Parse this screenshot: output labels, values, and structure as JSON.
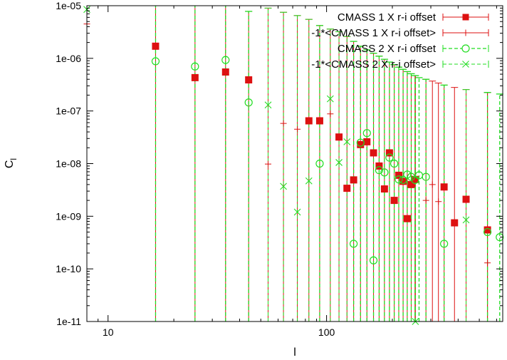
{
  "chart_data": {
    "type": "scatter",
    "title": "",
    "xlabel": "l",
    "ylabel": "C_l",
    "xscale": "log",
    "yscale": "log",
    "xlim": [
      8,
      640
    ],
    "ylim": [
      1e-11,
      1e-05
    ],
    "x_ticks": [
      {
        "value": 10,
        "label": "10"
      },
      {
        "value": 100,
        "label": "100"
      }
    ],
    "y_ticks": [
      {
        "value": 1e-11,
        "label": "1e-11"
      },
      {
        "value": 1e-10,
        "label": "1e-10"
      },
      {
        "value": 1e-09,
        "label": "1e-09"
      },
      {
        "value": 1e-08,
        "label": "1e-08"
      },
      {
        "value": 1e-07,
        "label": "1e-07"
      },
      {
        "value": 1e-06,
        "label": "1e-06"
      },
      {
        "value": 1e-05,
        "label": "1e-05"
      }
    ],
    "legend_position": "top-right",
    "colors": {
      "red": "#dd1111",
      "green": "#22dd22"
    },
    "series": [
      {
        "name": "CMASS 1 X r-i offset",
        "marker": "filled-square",
        "color": "#dd1111",
        "x": [
          16.5,
          25,
          34.5,
          44,
          83,
          93,
          114,
          124,
          133,
          143,
          153,
          164,
          174,
          184,
          194,
          204,
          214,
          224,
          234,
          244,
          254,
          345,
          385,
          435,
          545
        ],
        "y": [
          1.7e-06,
          4.3e-07,
          5.5e-07,
          3.9e-07,
          6.5e-08,
          6.5e-08,
          3.2e-08,
          3.4e-09,
          4.9e-09,
          2.3e-08,
          2.6e-08,
          1.6e-08,
          9e-09,
          3.3e-09,
          1.6e-08,
          2e-09,
          6e-09,
          4.6e-09,
          9e-10,
          4e-09,
          5e-09,
          3.6e-09,
          7.5e-10,
          2.1e-09,
          5.5e-10
        ],
        "y_upper": [
          1e-05,
          1e-05,
          1e-05,
          7.8e-06,
          5.5e-06,
          4.2e-06,
          3.2e-06,
          2.6e-06,
          2.1e-06,
          1.7e-06,
          1.45e-06,
          1.25e-06,
          1.1e-06,
          9.6e-07,
          8.5e-07,
          7.6e-07,
          6.8e-07,
          6.2e-07,
          5.6e-07,
          5.1e-07,
          4.7e-07,
          3.1e-07,
          2.8e-07,
          2.55e-07,
          2.25e-07
        ]
      },
      {
        "name": "-1*<CMASS 1 X r-i offset>",
        "marker": "plus",
        "color": "#dd1111",
        "x": [
          8,
          54,
          63.5,
          73.5,
          104,
          255,
          285,
          305,
          325,
          545
        ],
        "y": [
          4.5e-06,
          9.8e-09,
          5.8e-08,
          4.5e-08,
          8.8e-08,
          5e-09,
          2e-09,
          4e-09,
          1.9e-09,
          1.3e-10
        ],
        "y_upper": [
          1e-05,
          9e-06,
          7.5e-06,
          6.5e-06,
          3.6e-06,
          4.7e-07,
          4e-07,
          3.7e-07,
          3.4e-07,
          2.25e-07
        ]
      },
      {
        "name": "CMASS 2 X r-i offset",
        "marker": "open-circle",
        "color": "#22dd22",
        "x": [
          16.5,
          25,
          34.5,
          44,
          93,
          133,
          143,
          153,
          164,
          174,
          184,
          194,
          204,
          214,
          224,
          234,
          244,
          254,
          265,
          285,
          345,
          545,
          620
        ],
        "y": [
          8.8e-07,
          7e-07,
          9.3e-07,
          1.45e-07,
          1e-08,
          3e-10,
          2.5e-08,
          3.8e-08,
          1.45e-10,
          7.5e-09,
          6.8e-09,
          1.3e-08,
          1e-08,
          5e-09,
          4.9e-09,
          6.2e-09,
          5.6e-09,
          4.9e-09,
          6e-09,
          5.6e-09,
          3e-10,
          5e-10,
          4e-10
        ],
        "y_upper": [
          1e-05,
          1e-05,
          1e-05,
          7.8e-06,
          4.2e-06,
          2.1e-06,
          1.7e-06,
          1.45e-06,
          1.25e-06,
          1.1e-06,
          9.6e-07,
          8.5e-07,
          7.6e-07,
          6.8e-07,
          6.2e-07,
          5.6e-07,
          5.1e-07,
          4.7e-07,
          4.3e-07,
          4e-07,
          3.1e-07,
          2.25e-07,
          2.1e-07
        ]
      },
      {
        "name": "-1*<CMASS 2 X r-i offset>",
        "marker": "cross",
        "color": "#22dd22",
        "x": [
          8,
          54,
          63.5,
          73.5,
          83,
          104,
          114,
          124,
          255,
          435
        ],
        "y": [
          8.5e-06,
          1.3e-07,
          3.7e-09,
          1.2e-09,
          4.7e-09,
          1.7e-07,
          1.05e-08,
          2.6e-08,
          1e-11,
          8.5e-10
        ],
        "y_upper": [
          1e-05,
          9e-06,
          7.5e-06,
          6.5e-06,
          5.5e-06,
          3.6e-06,
          3.2e-06,
          2.6e-06,
          4.7e-07,
          2.55e-07
        ]
      }
    ]
  }
}
